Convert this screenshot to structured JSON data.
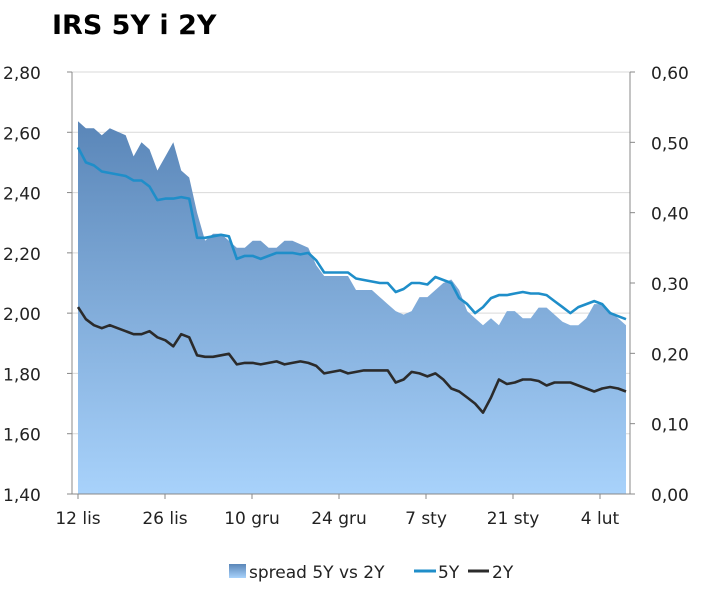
{
  "chart_data": {
    "type": "area+line",
    "title": "IRS 5Y i 2Y",
    "x_ticks": [
      "12 lis",
      "26 lis",
      "10 gru",
      "24 gru",
      "7 sty",
      "21 sty",
      "4 lut"
    ],
    "y_left": {
      "ticks": [
        "2,80",
        "2,60",
        "2,40",
        "2,20",
        "2,00",
        "1,80",
        "1,60",
        "1,40"
      ],
      "range": [
        1.4,
        2.8
      ]
    },
    "y_right": {
      "ticks": [
        "0,60",
        "0,50",
        "0,40",
        "0,30",
        "0,20",
        "0,10",
        "0,00"
      ],
      "range": [
        0.0,
        0.6
      ]
    },
    "grid": "horizontal",
    "legend_position": "bottom",
    "colors": {
      "spread_top": "#5a86b8",
      "spread_bottom": "#a8d2fb",
      "five_y": "#1f8ec9",
      "two_y": "#2b2b2b"
    },
    "series": [
      {
        "name": "spread 5Y vs 2Y",
        "kind": "area",
        "axis": "right",
        "values": [
          0.53,
          0.52,
          0.52,
          0.51,
          0.52,
          0.515,
          0.51,
          0.48,
          0.5,
          0.49,
          0.46,
          0.48,
          0.5,
          0.46,
          0.45,
          0.4,
          0.36,
          0.37,
          0.37,
          0.36,
          0.35,
          0.35,
          0.36,
          0.36,
          0.35,
          0.35,
          0.36,
          0.36,
          0.355,
          0.35,
          0.325,
          0.31,
          0.31,
          0.31,
          0.31,
          0.29,
          0.29,
          0.29,
          0.28,
          0.27,
          0.26,
          0.255,
          0.26,
          0.28,
          0.28,
          0.29,
          0.3,
          0.305,
          0.29,
          0.26,
          0.25,
          0.24,
          0.25,
          0.24,
          0.26,
          0.26,
          0.25,
          0.25,
          0.265,
          0.265,
          0.255,
          0.245,
          0.24,
          0.24,
          0.25,
          0.27,
          0.27,
          0.26,
          0.25,
          0.24
        ]
      },
      {
        "name": "5Y",
        "kind": "line",
        "axis": "left",
        "values": [
          2.55,
          2.5,
          2.49,
          2.47,
          2.465,
          2.46,
          2.455,
          2.44,
          2.44,
          2.42,
          2.375,
          2.38,
          2.38,
          2.385,
          2.38,
          2.25,
          2.25,
          2.255,
          2.26,
          2.255,
          2.18,
          2.19,
          2.19,
          2.18,
          2.19,
          2.2,
          2.2,
          2.2,
          2.195,
          2.2,
          2.175,
          2.135,
          2.135,
          2.135,
          2.135,
          2.115,
          2.11,
          2.105,
          2.1,
          2.1,
          2.07,
          2.08,
          2.1,
          2.1,
          2.095,
          2.12,
          2.11,
          2.1,
          2.05,
          2.03,
          2.0,
          2.02,
          2.05,
          2.06,
          2.06,
          2.065,
          2.07,
          2.065,
          2.065,
          2.06,
          2.04,
          2.02,
          2.0,
          2.02,
          2.03,
          2.04,
          2.03,
          2.0,
          1.99,
          1.98
        ]
      },
      {
        "name": "2Y",
        "kind": "line",
        "axis": "left",
        "values": [
          2.02,
          1.98,
          1.96,
          1.95,
          1.96,
          1.95,
          1.94,
          1.93,
          1.93,
          1.94,
          1.92,
          1.91,
          1.89,
          1.93,
          1.92,
          1.86,
          1.855,
          1.855,
          1.86,
          1.865,
          1.83,
          1.835,
          1.835,
          1.83,
          1.835,
          1.84,
          1.83,
          1.835,
          1.84,
          1.835,
          1.825,
          1.8,
          1.805,
          1.81,
          1.8,
          1.805,
          1.81,
          1.81,
          1.81,
          1.81,
          1.77,
          1.78,
          1.805,
          1.8,
          1.79,
          1.8,
          1.78,
          1.75,
          1.74,
          1.72,
          1.7,
          1.67,
          1.72,
          1.78,
          1.765,
          1.77,
          1.78,
          1.78,
          1.775,
          1.76,
          1.77,
          1.77,
          1.77,
          1.76,
          1.75,
          1.74,
          1.75,
          1.755,
          1.75,
          1.74
        ]
      }
    ]
  }
}
